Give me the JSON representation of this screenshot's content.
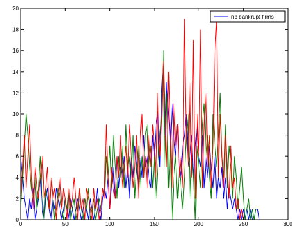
{
  "chart_data": {
    "type": "line",
    "title": "",
    "xlabel": "",
    "ylabel": "",
    "xlim": [
      0,
      300
    ],
    "ylim": [
      0,
      20
    ],
    "xticks": [
      0,
      50,
      100,
      150,
      200,
      250,
      300
    ],
    "yticks": [
      0,
      2,
      4,
      6,
      8,
      10,
      12,
      14,
      16,
      18,
      20
    ],
    "grid": false,
    "legend": {
      "placement": "top-right",
      "entries": [
        "nb bankrupt firms"
      ]
    },
    "series": [
      {
        "name": "nb bankrupt firms",
        "color": "#0000ff",
        "x": [
          0,
          2,
          4,
          6,
          8,
          10,
          12,
          14,
          16,
          18,
          20,
          22,
          24,
          26,
          28,
          30,
          32,
          34,
          36,
          38,
          40,
          42,
          44,
          46,
          48,
          50,
          52,
          54,
          56,
          58,
          60,
          62,
          64,
          66,
          68,
          70,
          72,
          74,
          76,
          78,
          80,
          82,
          84,
          86,
          88,
          90,
          92,
          94,
          96,
          98,
          100,
          102,
          104,
          106,
          108,
          110,
          112,
          114,
          116,
          118,
          120,
          122,
          124,
          126,
          128,
          130,
          132,
          134,
          136,
          138,
          140,
          142,
          144,
          146,
          148,
          150,
          152,
          154,
          156,
          158,
          160,
          162,
          164,
          166,
          168,
          170,
          172,
          174,
          176,
          178,
          180,
          182,
          184,
          186,
          188,
          190,
          192,
          194,
          196,
          198,
          200,
          202,
          204,
          206,
          208,
          210,
          212,
          214,
          216,
          218,
          220,
          222,
          224,
          226,
          228,
          230,
          232,
          234,
          236,
          238,
          240,
          242,
          244,
          246,
          248,
          250,
          252,
          254,
          256,
          258,
          260,
          262,
          264,
          266,
          268
        ],
        "y": [
          6,
          4,
          2,
          1,
          0,
          2,
          1,
          3,
          0,
          1,
          2,
          4,
          1,
          0,
          2,
          3,
          1,
          0,
          2,
          1,
          3,
          2,
          1,
          0,
          1,
          2,
          1,
          0,
          2,
          1,
          0,
          1,
          2,
          1,
          0,
          1,
          2,
          1,
          0,
          2,
          1,
          0,
          1,
          3,
          1,
          0,
          2,
          3,
          2,
          4,
          1,
          3,
          5,
          2,
          6,
          3,
          5,
          4,
          6,
          3,
          5,
          2,
          6,
          4,
          7,
          5,
          3,
          6,
          4,
          8,
          5,
          6,
          4,
          3,
          8,
          6,
          9,
          10,
          5,
          12,
          15,
          8,
          13,
          10,
          7,
          11,
          8,
          6,
          9,
          5,
          4,
          7,
          8,
          10,
          5,
          6,
          8,
          4,
          7,
          9,
          6,
          5,
          8,
          3,
          6,
          4,
          7,
          5,
          3,
          6,
          2,
          4,
          3,
          5,
          2,
          4,
          1,
          3,
          2,
          1,
          2,
          1,
          0,
          1,
          0,
          1,
          0,
          1,
          0,
          1,
          0,
          0,
          1,
          1,
          0
        ]
      },
      {
        "name": "",
        "color": "#008000",
        "x": [
          0,
          2,
          4,
          6,
          8,
          10,
          12,
          14,
          16,
          18,
          20,
          22,
          24,
          26,
          28,
          30,
          32,
          34,
          36,
          38,
          40,
          42,
          44,
          46,
          48,
          50,
          52,
          54,
          56,
          58,
          60,
          62,
          64,
          66,
          68,
          70,
          72,
          74,
          76,
          78,
          80,
          82,
          84,
          86,
          88,
          90,
          92,
          94,
          96,
          98,
          100,
          102,
          104,
          106,
          108,
          110,
          112,
          114,
          116,
          118,
          120,
          122,
          124,
          126,
          128,
          130,
          132,
          134,
          136,
          138,
          140,
          142,
          144,
          146,
          148,
          150,
          152,
          154,
          156,
          158,
          160,
          162,
          164,
          166,
          168,
          170,
          172,
          174,
          176,
          178,
          180,
          182,
          184,
          186,
          188,
          190,
          192,
          194,
          196,
          198,
          200,
          202,
          204,
          206,
          208,
          210,
          212,
          214,
          216,
          218,
          220,
          222,
          224,
          226,
          228,
          230,
          232,
          234,
          236,
          238,
          240,
          242,
          244,
          246,
          248,
          250,
          252,
          254,
          256,
          258,
          260,
          262,
          264
        ],
        "y": [
          1,
          4,
          7,
          10,
          8,
          5,
          3,
          2,
          4,
          1,
          3,
          6,
          2,
          0,
          3,
          2,
          1,
          4,
          2,
          0,
          1,
          3,
          2,
          1,
          0,
          2,
          1,
          3,
          0,
          1,
          2,
          0,
          1,
          3,
          1,
          0,
          2,
          1,
          3,
          0,
          1,
          2,
          0,
          1,
          2,
          1,
          3,
          2,
          6,
          4,
          7,
          3,
          8,
          5,
          2,
          6,
          4,
          7,
          3,
          9,
          5,
          6,
          4,
          8,
          2,
          5,
          7,
          3,
          6,
          4,
          8,
          9,
          5,
          7,
          3,
          6,
          2,
          5,
          8,
          10,
          16,
          5,
          12,
          3,
          7,
          0,
          4,
          6,
          2,
          5,
          3,
          1,
          4,
          8,
          10,
          2,
          6,
          4,
          0,
          7,
          5,
          3,
          9,
          11,
          6,
          8,
          4,
          2,
          10,
          7,
          5,
          8,
          12,
          6,
          4,
          9,
          3,
          7,
          5,
          2,
          6,
          4,
          1,
          3,
          5,
          2,
          0,
          1,
          2,
          0,
          1,
          0,
          1
        ]
      },
      {
        "name": "",
        "color": "#ff0000",
        "x": [
          0,
          2,
          4,
          6,
          8,
          10,
          12,
          14,
          16,
          18,
          20,
          22,
          24,
          26,
          28,
          30,
          32,
          34,
          36,
          38,
          40,
          42,
          44,
          46,
          48,
          50,
          52,
          54,
          56,
          58,
          60,
          62,
          64,
          66,
          68,
          70,
          72,
          74,
          76,
          78,
          80,
          82,
          84,
          86,
          88,
          90,
          92,
          94,
          96,
          98,
          100,
          102,
          104,
          106,
          108,
          110,
          112,
          114,
          116,
          118,
          120,
          122,
          124,
          126,
          128,
          130,
          132,
          134,
          136,
          138,
          140,
          142,
          144,
          146,
          148,
          150,
          152,
          154,
          156,
          158,
          160,
          162,
          164,
          166,
          168,
          170,
          172,
          174,
          176,
          178,
          180,
          182,
          184,
          186,
          188,
          190,
          192,
          194,
          196,
          198,
          200,
          202,
          204,
          206,
          208,
          210,
          212,
          214,
          216,
          218,
          220,
          222,
          224,
          226,
          228,
          230,
          232,
          234,
          236,
          238,
          240,
          242,
          244,
          246,
          248,
          250,
          252,
          254,
          256,
          258,
          260,
          262,
          264,
          266,
          268,
          270,
          272,
          274,
          276,
          278,
          280,
          282,
          284,
          286,
          288,
          290,
          292,
          294,
          296,
          298,
          300
        ],
        "y": [
          2,
          5,
          8,
          3,
          6,
          9,
          4,
          1,
          5,
          3,
          2,
          4,
          6,
          2,
          3,
          5,
          1,
          4,
          2,
          3,
          0,
          2,
          4,
          1,
          3,
          2,
          0,
          3,
          1,
          2,
          4,
          2,
          0,
          3,
          1,
          2,
          0,
          3,
          2,
          1,
          0,
          3,
          1,
          2,
          0,
          1,
          3,
          2,
          9,
          4,
          1,
          5,
          3,
          2,
          6,
          4,
          8,
          3,
          5,
          7,
          4,
          9,
          6,
          3,
          5,
          8,
          2,
          7,
          10,
          4,
          6,
          3,
          8,
          5,
          9,
          7,
          4,
          12,
          6,
          9,
          15,
          10,
          5,
          14,
          8,
          3,
          11,
          7,
          9,
          4,
          6,
          3,
          19,
          8,
          5,
          13,
          4,
          17,
          2,
          10,
          6,
          18,
          3,
          9,
          12,
          5,
          8,
          3,
          7,
          16,
          19,
          4,
          10,
          6,
          3,
          8,
          5,
          2,
          7,
          3,
          4,
          1,
          2,
          0,
          1,
          0,
          0,
          0,
          0,
          0,
          0,
          0,
          0,
          0,
          0,
          0,
          0,
          0,
          0,
          0,
          0,
          0,
          0,
          0,
          0,
          0,
          0,
          0,
          0,
          0,
          0
        ]
      }
    ]
  }
}
